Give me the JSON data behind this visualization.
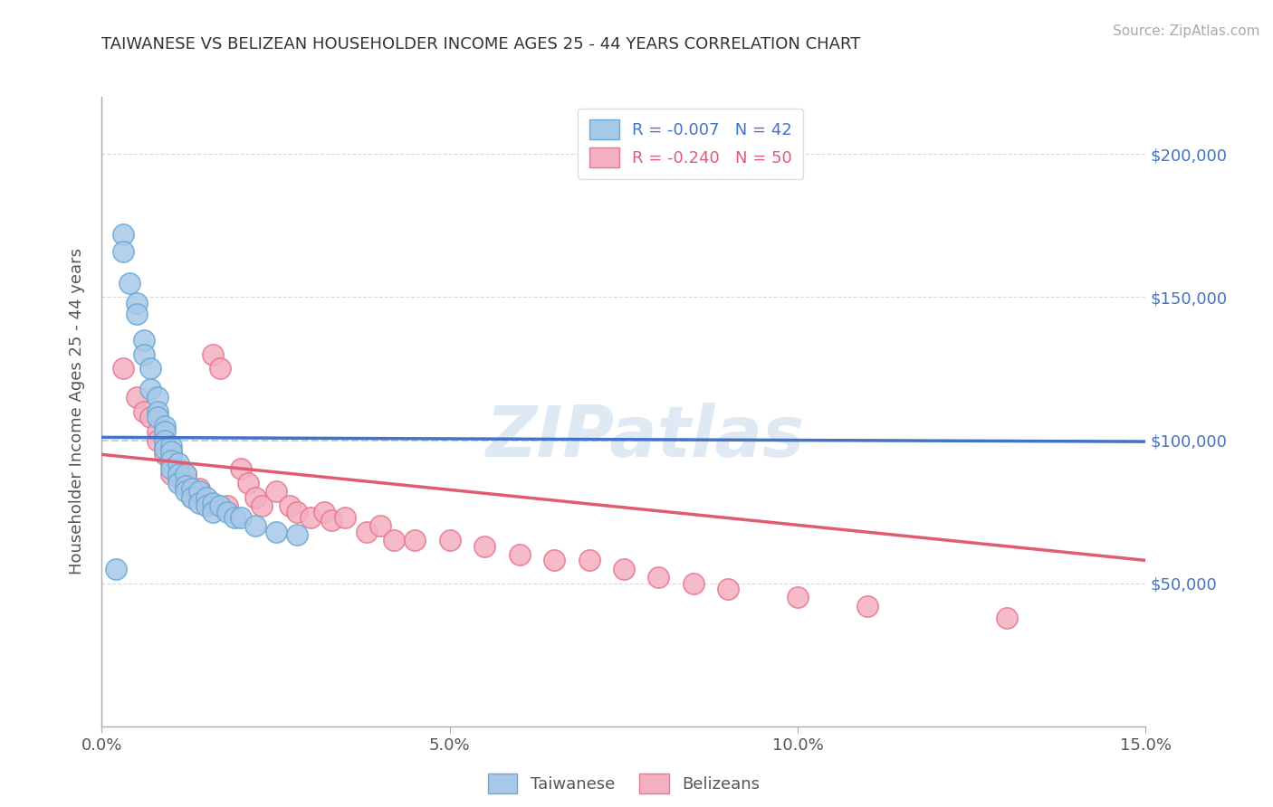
{
  "title": "TAIWANESE VS BELIZEAN HOUSEHOLDER INCOME AGES 25 - 44 YEARS CORRELATION CHART",
  "source_text": "Source: ZipAtlas.com",
  "ylabel": "Householder Income Ages 25 - 44 years",
  "xlim": [
    0.0,
    0.15
  ],
  "ylim": [
    0,
    220000
  ],
  "yticks": [
    0,
    50000,
    100000,
    150000,
    200000
  ],
  "ytick_labels": [
    "",
    "$50,000",
    "$100,000",
    "$150,000",
    "$200,000"
  ],
  "xtick_labels": [
    "0.0%",
    "5.0%",
    "10.0%",
    "15.0%"
  ],
  "xtick_vals": [
    0.0,
    0.05,
    0.1,
    0.15
  ],
  "taiwanese_R": -0.007,
  "taiwanese_N": 42,
  "belizean_R": -0.24,
  "belizean_N": 50,
  "taiwanese_color": "#a8c8e8",
  "taiwanese_edge": "#6aaad4",
  "belizean_color": "#f4b0c0",
  "belizean_edge": "#e87890",
  "trend_taiwanese_color": "#4472c4",
  "trend_belizean_color": "#e05c72",
  "watermark": "ZIPatlas",
  "grid_color": "#c8c8c8",
  "background_color": "#ffffff",
  "taiwanese_x": [
    0.002,
    0.003,
    0.003,
    0.004,
    0.005,
    0.005,
    0.006,
    0.006,
    0.007,
    0.007,
    0.008,
    0.008,
    0.008,
    0.009,
    0.009,
    0.009,
    0.009,
    0.01,
    0.01,
    0.01,
    0.01,
    0.011,
    0.011,
    0.011,
    0.012,
    0.012,
    0.012,
    0.013,
    0.013,
    0.014,
    0.014,
    0.015,
    0.015,
    0.016,
    0.016,
    0.017,
    0.018,
    0.019,
    0.02,
    0.022,
    0.025,
    0.028
  ],
  "taiwanese_y": [
    55000,
    172000,
    166000,
    155000,
    148000,
    144000,
    135000,
    130000,
    125000,
    118000,
    115000,
    110000,
    108000,
    105000,
    103000,
    100000,
    97000,
    98000,
    96000,
    93000,
    90000,
    92000,
    88000,
    85000,
    88000,
    84000,
    82000,
    83000,
    80000,
    82000,
    78000,
    80000,
    77000,
    78000,
    75000,
    77000,
    75000,
    73000,
    73000,
    70000,
    68000,
    67000
  ],
  "belizean_x": [
    0.003,
    0.005,
    0.006,
    0.007,
    0.008,
    0.008,
    0.009,
    0.009,
    0.01,
    0.01,
    0.01,
    0.011,
    0.011,
    0.012,
    0.012,
    0.013,
    0.013,
    0.014,
    0.014,
    0.015,
    0.016,
    0.017,
    0.018,
    0.02,
    0.021,
    0.022,
    0.023,
    0.025,
    0.027,
    0.028,
    0.03,
    0.032,
    0.033,
    0.035,
    0.038,
    0.04,
    0.042,
    0.045,
    0.05,
    0.055,
    0.06,
    0.065,
    0.07,
    0.075,
    0.08,
    0.085,
    0.09,
    0.1,
    0.11,
    0.13
  ],
  "belizean_y": [
    125000,
    115000,
    110000,
    108000,
    103000,
    100000,
    98000,
    95000,
    95000,
    92000,
    88000,
    90000,
    87000,
    88000,
    85000,
    83000,
    80000,
    83000,
    80000,
    78000,
    130000,
    125000,
    77000,
    90000,
    85000,
    80000,
    77000,
    82000,
    77000,
    75000,
    73000,
    75000,
    72000,
    73000,
    68000,
    70000,
    65000,
    65000,
    65000,
    63000,
    60000,
    58000,
    58000,
    55000,
    52000,
    50000,
    48000,
    45000,
    42000,
    38000
  ],
  "tw_trend_x0": 0.0,
  "tw_trend_y0": 101000,
  "tw_trend_x1": 0.15,
  "tw_trend_y1": 99500,
  "bel_trend_x0": 0.0,
  "bel_trend_y0": 95000,
  "bel_trend_x1": 0.15,
  "bel_trend_y1": 58000
}
